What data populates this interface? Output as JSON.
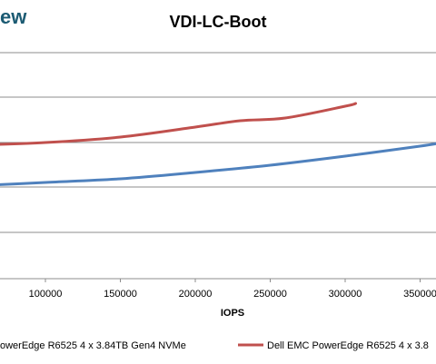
{
  "brand": {
    "text": "ew"
  },
  "chart_data": {
    "type": "line",
    "title": "VDI-LC-Boot",
    "xlabel": "IOPS",
    "ylabel": "",
    "xlim": [
      50000,
      365000
    ],
    "x_ticks": [
      100000,
      150000,
      200000,
      250000,
      300000,
      350000
    ],
    "x_tick_labels": [
      "100000",
      "150000",
      "200000",
      "250000",
      "300000",
      "350000"
    ],
    "y_gridlines": 5,
    "grid": true,
    "legend_position": "bottom",
    "series": [
      {
        "name": "owerEdge R6525 4 x 3.84TB Gen4 NVMe",
        "color": "#4f81bd",
        "points": [
          [
            50000,
            0.205
          ],
          [
            100000,
            0.201
          ],
          [
            150000,
            0.197
          ],
          [
            200000,
            0.19
          ],
          [
            250000,
            0.182
          ],
          [
            300000,
            0.172
          ],
          [
            350000,
            0.161
          ],
          [
            365000,
            0.157
          ]
        ]
      },
      {
        "name": "Dell EMC PowerEdge R6525 4 x 3.8",
        "color": "#c0504d",
        "points": [
          [
            50000,
            0.16
          ],
          [
            100000,
            0.157
          ],
          [
            150000,
            0.151
          ],
          [
            200000,
            0.14
          ],
          [
            230000,
            0.133
          ],
          [
            260000,
            0.13
          ],
          [
            300000,
            0.117
          ],
          [
            307000,
            0.114
          ]
        ]
      }
    ]
  }
}
